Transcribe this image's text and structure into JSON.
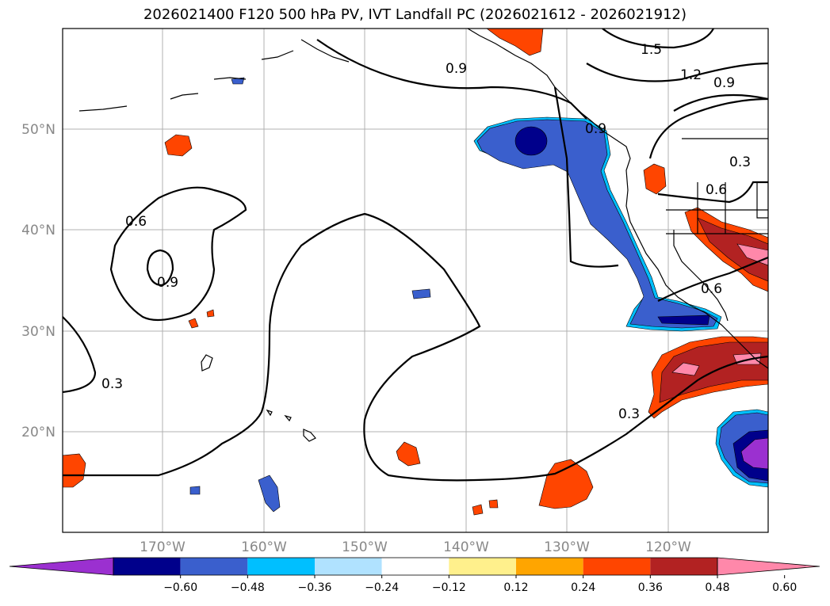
{
  "title": "2026021400 F120 500 hPa PV, IVT Landfall PC (2026021612 - 2026021912)",
  "lat_ticks": [
    "50°N",
    "40°N",
    "30°N",
    "20°N"
  ],
  "lon_ticks": [
    "170°W",
    "160°W",
    "150°W",
    "140°W",
    "130°W",
    "120°W"
  ],
  "contour_labels": [
    "0.9",
    "1.5",
    "1.2",
    "0.9",
    "0.9",
    "0.3",
    "0.6",
    "0.6",
    "0.9",
    "0.6",
    "0.3",
    "0.3"
  ],
  "colorbar": {
    "labels": [
      "−0.60",
      "−0.48",
      "−0.36",
      "−0.24",
      "−0.12",
      "0.12",
      "0.24",
      "0.36",
      "0.48",
      "0.60"
    ],
    "colors": [
      "#9b30d0",
      "#00008b",
      "#3a5fcd",
      "#00bfff",
      "#b0e2ff",
      "#ffffff",
      "#fff08c",
      "#ffa500",
      "#ff4500",
      "#b22222",
      "#ff88aa"
    ]
  },
  "colors": {
    "neg_deep": "#9b30d0",
    "neg_dark": "#00008b",
    "neg_mid": "#3a5fcd",
    "neg_light": "#00bfff",
    "pos_light": "#fff08c",
    "pos_mid": "#ffa500",
    "pos_orange": "#ff4500",
    "pos_dark": "#b22222",
    "pos_pink": "#ff88aa"
  }
}
